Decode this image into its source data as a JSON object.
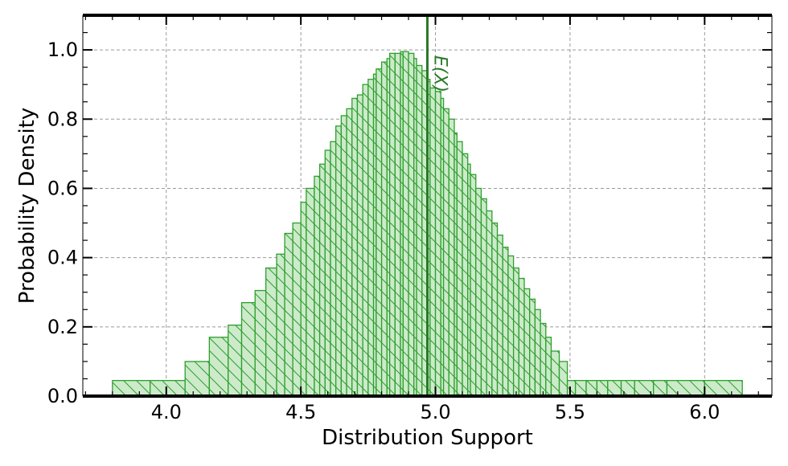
{
  "chart_data": {
    "type": "bar",
    "xlabel": "Distribution Support",
    "ylabel": "Probability Density",
    "xlim": [
      3.69,
      6.25
    ],
    "ylim": [
      0.0,
      1.1
    ],
    "xticks": [
      4.0,
      4.5,
      5.0,
      5.5,
      6.0
    ],
    "xtick_labels": [
      "4.0",
      "4.5",
      "5.0",
      "5.5",
      "6.0"
    ],
    "yticks": [
      0.0,
      0.2,
      0.4,
      0.6,
      0.8,
      1.0
    ],
    "ytick_labels": [
      "0.0",
      "0.2",
      "0.4",
      "0.6",
      "0.8",
      "1.0"
    ],
    "grid": true,
    "bar_color": "#2ca02c",
    "bar_fill": "#cdeacb",
    "hatch": "diagonal",
    "bin_edges": [
      3.8,
      3.94,
      4.07,
      4.16,
      4.23,
      4.28,
      4.33,
      4.37,
      4.41,
      4.44,
      4.47,
      4.5,
      4.52,
      4.55,
      4.57,
      4.59,
      4.61,
      4.63,
      4.65,
      4.67,
      4.69,
      4.71,
      4.73,
      4.75,
      4.77,
      4.78,
      4.8,
      4.82,
      4.83,
      4.85,
      4.87,
      4.88,
      4.9,
      4.92,
      4.93,
      4.95,
      4.97,
      4.98,
      5.0,
      5.02,
      5.03,
      5.05,
      5.07,
      5.08,
      5.1,
      5.12,
      5.13,
      5.15,
      5.17,
      5.19,
      5.21,
      5.23,
      5.25,
      5.27,
      5.29,
      5.31,
      5.33,
      5.35,
      5.37,
      5.39,
      5.41,
      5.43,
      5.46,
      5.49,
      5.52,
      5.56,
      5.6,
      5.64,
      5.69,
      5.74,
      5.81,
      5.86,
      6.0,
      6.14
    ],
    "values": [
      0.045,
      0.045,
      0.1,
      0.17,
      0.205,
      0.27,
      0.305,
      0.37,
      0.41,
      0.47,
      0.5,
      0.56,
      0.6,
      0.635,
      0.67,
      0.71,
      0.735,
      0.78,
      0.81,
      0.83,
      0.86,
      0.87,
      0.9,
      0.915,
      0.93,
      0.945,
      0.965,
      0.975,
      0.99,
      0.99,
      0.995,
      0.995,
      0.99,
      0.975,
      0.955,
      0.94,
      0.915,
      0.89,
      0.88,
      0.86,
      0.83,
      0.8,
      0.76,
      0.735,
      0.7,
      0.67,
      0.64,
      0.6,
      0.57,
      0.535,
      0.5,
      0.465,
      0.43,
      0.405,
      0.37,
      0.34,
      0.31,
      0.28,
      0.25,
      0.21,
      0.17,
      0.13,
      0.1,
      0.045,
      0.045,
      0.045,
      0.045,
      0.045,
      0.045,
      0.045,
      0.045,
      0.045,
      0.045
    ],
    "mean_line": {
      "x": 4.97,
      "label": "E(X)"
    }
  }
}
